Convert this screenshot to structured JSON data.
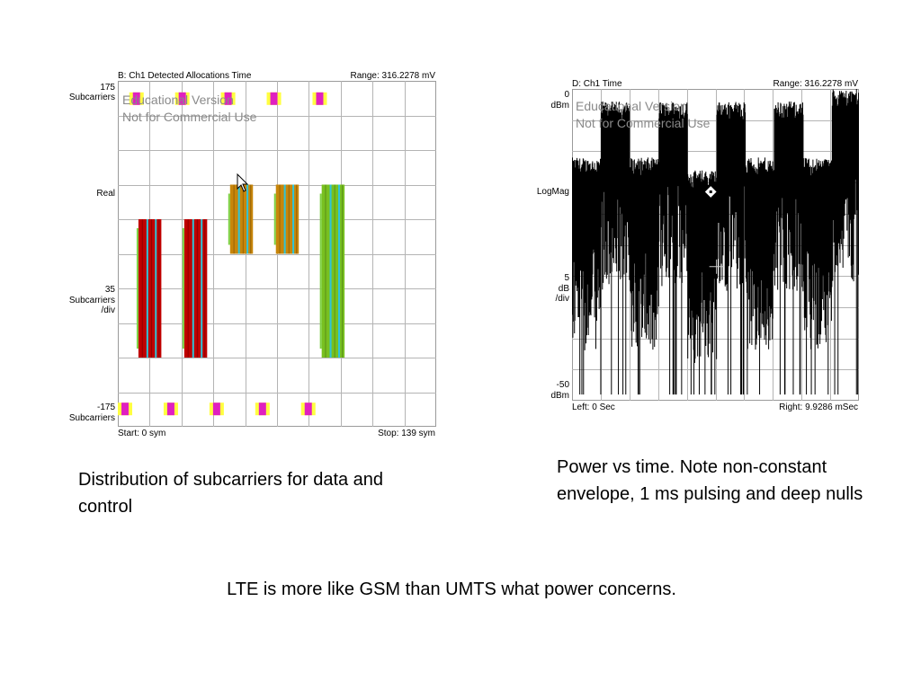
{
  "chart_data": [
    {
      "type": "heatmap",
      "title": "B: Ch1 Detected Allocations Time",
      "range_label": "Range: 316.2278 mV",
      "y_top_value": "175",
      "y_top_unit": "Subcarriers",
      "y_mid_label": "Real",
      "y_scale_value": "35",
      "y_scale_unit1": "Subcarriers",
      "y_scale_unit2": "/div",
      "y_bottom_value": "-175",
      "y_bottom_unit": "Subcarriers",
      "x_start_label": "Start: 0  sym",
      "x_stop_label": "Stop: 139  sym",
      "xlim": [
        0,
        139
      ],
      "ylim": [
        -175,
        175
      ],
      "watermark_line1": "Educational Version",
      "watermark_line2": "Not for Commercial Use",
      "allocations": [
        {
          "x_start": 9,
          "x_end": 19,
          "y_low": -105,
          "y_high": 35,
          "color": "#c00000",
          "stripe": "#2ec4d8"
        },
        {
          "x_start": 29,
          "x_end": 39,
          "y_low": -105,
          "y_high": 35,
          "color": "#c00000",
          "stripe": "#2ec4d8"
        },
        {
          "x_start": 49,
          "x_end": 59,
          "y_low": 0,
          "y_high": 70,
          "color": "#c8860a",
          "stripe": "#2ec4d8"
        },
        {
          "x_start": 69,
          "x_end": 79,
          "y_low": 0,
          "y_high": 70,
          "color": "#c8860a",
          "stripe": "#2ec4d8"
        },
        {
          "x_start": 89,
          "x_end": 99,
          "y_low": -105,
          "y_high": 70,
          "color": "#78c020",
          "stripe": "#2ec4d8"
        }
      ],
      "control_markers": [
        {
          "x": 5,
          "y": 157
        },
        {
          "x": 25,
          "y": 157
        },
        {
          "x": 45,
          "y": 157
        },
        {
          "x": 65,
          "y": 157
        },
        {
          "x": 85,
          "y": 157
        },
        {
          "x": 0,
          "y": -157
        },
        {
          "x": 20,
          "y": -157
        },
        {
          "x": 40,
          "y": -157
        },
        {
          "x": 60,
          "y": -157
        },
        {
          "x": 80,
          "y": -157
        }
      ]
    },
    {
      "type": "line",
      "title": "D: Ch1 Time",
      "range_label": "Range: 316.2278 mV",
      "y_top_value": "0",
      "y_top_unit": "dBm",
      "y_mid_label": "LogMag",
      "y_scale_value": "5",
      "y_scale_unit1": "dB",
      "y_scale_unit2": "/div",
      "y_bottom_value": "-50",
      "y_bottom_unit": "dBm",
      "x_start_label": "Left: 0  Sec",
      "x_stop_label": "Right: 9.9286 mSec",
      "xlim": [
        0,
        9.9286
      ],
      "ylim": [
        -50,
        0
      ],
      "watermark_line1": "Educational Version",
      "watermark_line2": "Not for Commercial Use",
      "series": [
        {
          "x": [
            0.0,
            0.9,
            1.0,
            1.9,
            2.0,
            2.9,
            3.0,
            3.9,
            4.0,
            4.9,
            5.0,
            5.9,
            6.0,
            6.9,
            7.0,
            7.9,
            8.0,
            8.9,
            9.0,
            9.9
          ],
          "y": [
            -14,
            -14,
            -5,
            -5,
            -14,
            -14,
            -5,
            -5,
            -16,
            -16,
            -5,
            -5,
            -14,
            -14,
            -5,
            -5,
            -14,
            -14,
            -3,
            -3
          ]
        }
      ]
    }
  ],
  "captions": {
    "left": "Distribution of subcarriers for data and control",
    "right": "Power vs time. Note non-constant envelope, 1 ms pulsing and deep nulls",
    "bottom": "LTE is more like GSM than UMTS what power concerns."
  }
}
